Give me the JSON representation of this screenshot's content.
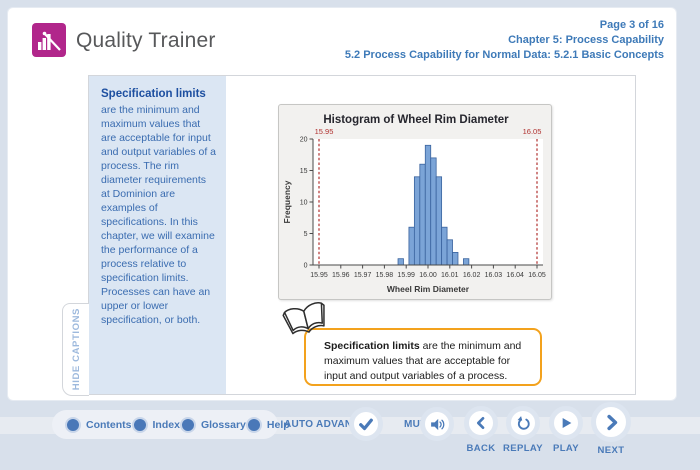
{
  "header": {
    "app_title": "Quality Trainer",
    "page_indicator": "Page 3 of 16",
    "chapter": "Chapter 5: Process Capability",
    "section": "5.2 Process Capability for Normal Data: 5.2.1 Basic Concepts"
  },
  "caption_panel": {
    "heading": "Specification limits",
    "body": "are the minimum and maximum values that are acceptable for input and output variables of a process. The rim diameter requirements at Dominion are examples of specifications. In this chapter, we will examine the performance of a process relative to specification limits. Processes can have an upper or lower specification, or both.",
    "hide_tab_label": "HIDE CAPTIONS"
  },
  "chart_data": {
    "type": "bar",
    "title": "Histogram of Wheel Rim Diameter",
    "xlabel": "Wheel Rim Diameter",
    "ylabel": "Frequency",
    "xlim": [
      15.95,
      16.05
    ],
    "ylim": [
      0,
      20
    ],
    "x_ticks": [
      15.95,
      15.96,
      15.97,
      15.98,
      15.99,
      16.0,
      16.01,
      16.02,
      16.03,
      16.04,
      16.05
    ],
    "y_ticks": [
      0,
      5,
      10,
      15,
      20
    ],
    "bin_width": 0.0025,
    "bins": [
      {
        "x": 15.9875,
        "n": 1
      },
      {
        "x": 15.9925,
        "n": 6
      },
      {
        "x": 15.995,
        "n": 14
      },
      {
        "x": 15.9975,
        "n": 16
      },
      {
        "x": 16.0,
        "n": 19
      },
      {
        "x": 16.0025,
        "n": 17
      },
      {
        "x": 16.005,
        "n": 14
      },
      {
        "x": 16.0075,
        "n": 6
      },
      {
        "x": 16.01,
        "n": 4
      },
      {
        "x": 16.0125,
        "n": 2
      },
      {
        "x": 16.0175,
        "n": 1
      }
    ],
    "spec_limits": {
      "lower": 15.95,
      "upper": 16.05,
      "lower_label": "15.95",
      "upper_label": "16.05"
    },
    "grid": false,
    "legend": false,
    "bar_fill": "#7ba4d7",
    "bar_stroke": "#3a639e",
    "spec_color": "#b0312f"
  },
  "callout": {
    "heading": "Specification limits",
    "body": " are the minimum and maximum values that are acceptable for input and output variables of a process."
  },
  "toolbar": {
    "nav_items": [
      {
        "label": "Contents"
      },
      {
        "label": "Index"
      },
      {
        "label": "Glossary"
      },
      {
        "label": "Help"
      }
    ],
    "auto_advance_label": "AUTO ADVANCE",
    "mute_label": "MUTE",
    "transport": [
      {
        "label": "BACK"
      },
      {
        "label": "REPLAY"
      },
      {
        "label": "PLAY"
      },
      {
        "label": "NEXT"
      }
    ]
  },
  "colors": {
    "accent_blue": "#4a7ab8",
    "header_blue": "#3e7ab8",
    "logo_magenta": "#b1268b",
    "caption_bg": "#dbe6f3",
    "callout_border": "#f3a21d",
    "spec_red": "#b0312f",
    "page_bg": "#d8e0eb"
  }
}
